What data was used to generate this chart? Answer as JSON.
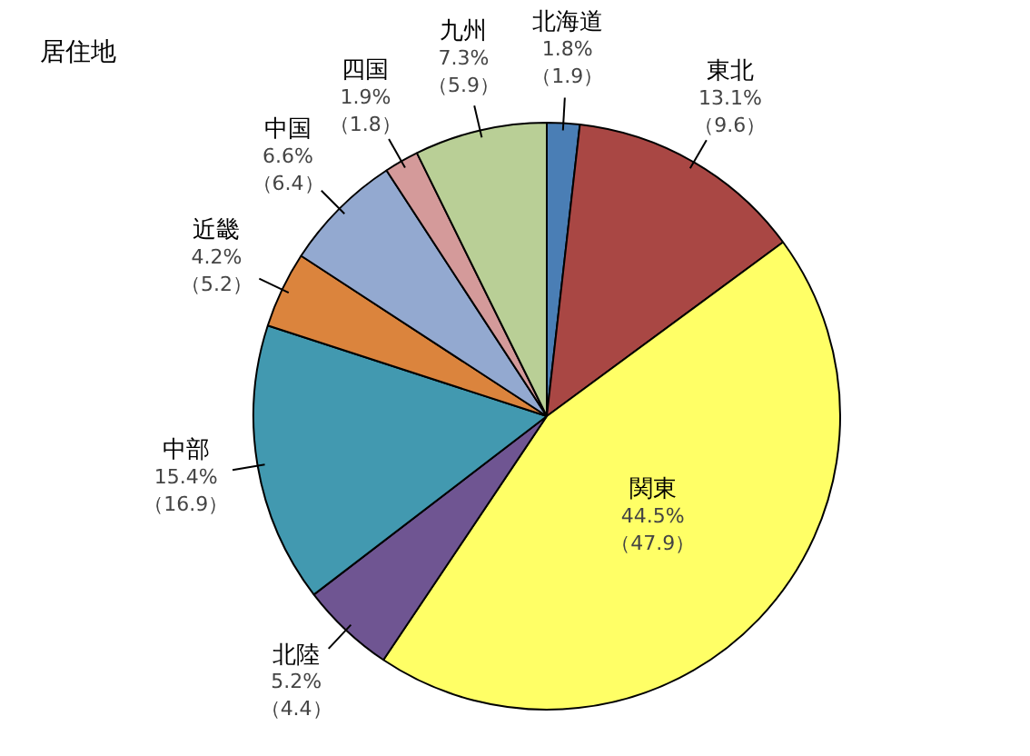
{
  "chart_data": {
    "type": "pie",
    "title": "居住地",
    "categories": [
      "北海道",
      "東北",
      "関東",
      "北陸",
      "中部",
      "近畿",
      "中国",
      "四国",
      "九州"
    ],
    "values": [
      1.8,
      13.1,
      44.5,
      5.2,
      15.4,
      4.2,
      6.6,
      1.9,
      7.3
    ],
    "colors": [
      "#4a7eb5",
      "#a94744",
      "#ffff66",
      "#6f5592",
      "#4299b0",
      "#db843d",
      "#93a9d0",
      "#d49a9a",
      "#b9cf96"
    ],
    "value_labels": [
      "1.8%\n（1.9）",
      "13.1%\n（9.6）",
      "44.5%\n（47.9）",
      "5.2%\n（4.4）",
      "15.4%\n（16.9）",
      "4.2%\n（5.2）",
      "6.6%\n（6.4）",
      "1.9%\n（1.8）",
      "7.3%\n（5.9）"
    ],
    "legend": false
  }
}
